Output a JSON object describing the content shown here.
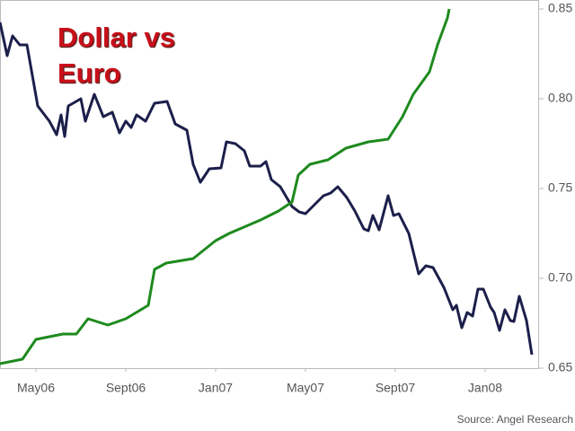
{
  "chart_data": {
    "type": "line",
    "title": "Dollar vs Euro",
    "source": "Source: Angel Research",
    "xlim": [
      0,
      24
    ],
    "xticks": [
      {
        "value": 1.6,
        "label": "May06"
      },
      {
        "value": 5.6,
        "label": "Sept06"
      },
      {
        "value": 9.6,
        "label": "Jan07"
      },
      {
        "value": 13.6,
        "label": "May07"
      },
      {
        "value": 17.6,
        "label": "Sept07"
      },
      {
        "value": 21.6,
        "label": "Jan08"
      }
    ],
    "ylim": [
      0.65,
      0.85
    ],
    "yticks": [
      0.65,
      {
        "value": 0.7,
        "label": "0.70"
      },
      0.75,
      {
        "value": 0.8,
        "label": "0.80"
      },
      0.85
    ],
    "series": [
      {
        "color": "#1c1f4a",
        "x": [
          0,
          0.32,
          0.56,
          0.88,
          1.2,
          1.68,
          2.2,
          2.52,
          2.72,
          2.88,
          3.04,
          3.6,
          3.8,
          4.2,
          4.6,
          5,
          5.32,
          5.6,
          5.84,
          6.08,
          6.48,
          6.88,
          7.44,
          7.8,
          8.32,
          8.6,
          8.92,
          9.32,
          9.84,
          10.08,
          10.48,
          10.88,
          11.12,
          11.6,
          11.84,
          12.08,
          12.48,
          13,
          13.32,
          13.6,
          14,
          14.4,
          14.72,
          15.04,
          15.44,
          15.8,
          16.2,
          16.4,
          16.6,
          16.88,
          17.28,
          17.52,
          17.76,
          18.2,
          18.64,
          18.96,
          19.28,
          19.76,
          20.16,
          20.32,
          20.56,
          20.8,
          21.04,
          21.28,
          21.52,
          21.84,
          22,
          22.24,
          22.48,
          22.72,
          22.88,
          23.12,
          23.44,
          23.68
        ],
        "values": [
          0.8425,
          0.824,
          0.835,
          0.83,
          0.83,
          0.796,
          0.7875,
          0.78,
          0.791,
          0.779,
          0.796,
          0.8,
          0.7875,
          0.8025,
          0.79,
          0.7925,
          0.781,
          0.7875,
          0.784,
          0.791,
          0.7875,
          0.7975,
          0.7985,
          0.786,
          0.7825,
          0.7635,
          0.7535,
          0.761,
          0.7615,
          0.776,
          0.775,
          0.771,
          0.7625,
          0.7625,
          0.765,
          0.755,
          0.751,
          0.74,
          0.737,
          0.736,
          0.741,
          0.746,
          0.7475,
          0.751,
          0.745,
          0.7375,
          0.7275,
          0.7265,
          0.735,
          0.727,
          0.746,
          0.735,
          0.736,
          0.725,
          0.7025,
          0.707,
          0.706,
          0.695,
          0.6825,
          0.685,
          0.6725,
          0.681,
          0.679,
          0.694,
          0.694,
          0.684,
          0.681,
          0.671,
          0.6825,
          0.6765,
          0.676,
          0.69,
          0.6765,
          0.6575
        ]
      },
      {
        "color": "#1e8a1e",
        "x": [
          0,
          1,
          1.6,
          2.8,
          3.4,
          3.92,
          4.8,
          5.6,
          6.6,
          6.88,
          7.4,
          8.6,
          9.6,
          10.2,
          11.6,
          12.4,
          13,
          13.28,
          13.8,
          14.6,
          15.4,
          16.4,
          17.28,
          17.92,
          18.4,
          19.12,
          19.48,
          19.92,
          20
        ],
        "values": [
          0.6525,
          0.655,
          0.666,
          0.669,
          0.669,
          0.6775,
          0.674,
          0.6775,
          0.685,
          0.705,
          0.7085,
          0.711,
          0.721,
          0.725,
          0.7325,
          0.7375,
          0.7425,
          0.7575,
          0.7635,
          0.766,
          0.7725,
          0.776,
          0.7775,
          0.79,
          0.8025,
          0.815,
          0.83,
          0.845,
          0.85
        ]
      }
    ]
  }
}
